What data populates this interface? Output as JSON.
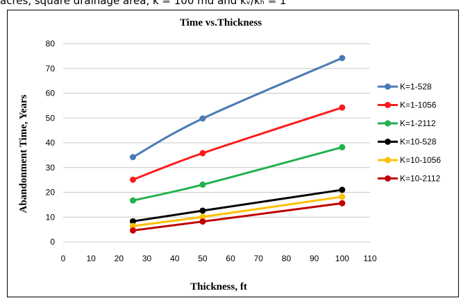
{
  "caption": "acres, square drainage area, k = 100 md and kᵥ/kₕ = 1",
  "chart_data": {
    "type": "line",
    "title": "Time vs.Thickness",
    "xlabel": "Thickness, ft",
    "ylabel": "Abandonment Time, Years",
    "xlim": [
      0,
      110
    ],
    "ylim": [
      0,
      80
    ],
    "xticks": [
      0,
      10,
      20,
      30,
      40,
      50,
      60,
      70,
      80,
      90,
      100,
      110
    ],
    "yticks": [
      0,
      10,
      20,
      30,
      40,
      50,
      60,
      70,
      80
    ],
    "grid": "horizontal",
    "legend_position": "right",
    "x": [
      25,
      50,
      100
    ],
    "series": [
      {
        "name": "K=1-528",
        "color": "#4a7ab5",
        "values": [
          34.2,
          49.8,
          74.2
        ]
      },
      {
        "name": "K=1-1056",
        "color": "#ff1a1a",
        "values": [
          25.1,
          35.8,
          54.2
        ]
      },
      {
        "name": "K=1-2112",
        "color": "#22b14c",
        "values": [
          16.7,
          23.1,
          38.2
        ]
      },
      {
        "name": "K=10-528",
        "color": "#000000",
        "values": [
          8.3,
          12.6,
          21.0
        ]
      },
      {
        "name": "K=10-1056",
        "color": "#ffc000",
        "values": [
          6.4,
          10.1,
          18.2
        ]
      },
      {
        "name": "K=10-2112",
        "color": "#c00000",
        "values": [
          4.6,
          8.2,
          15.6
        ]
      }
    ]
  }
}
